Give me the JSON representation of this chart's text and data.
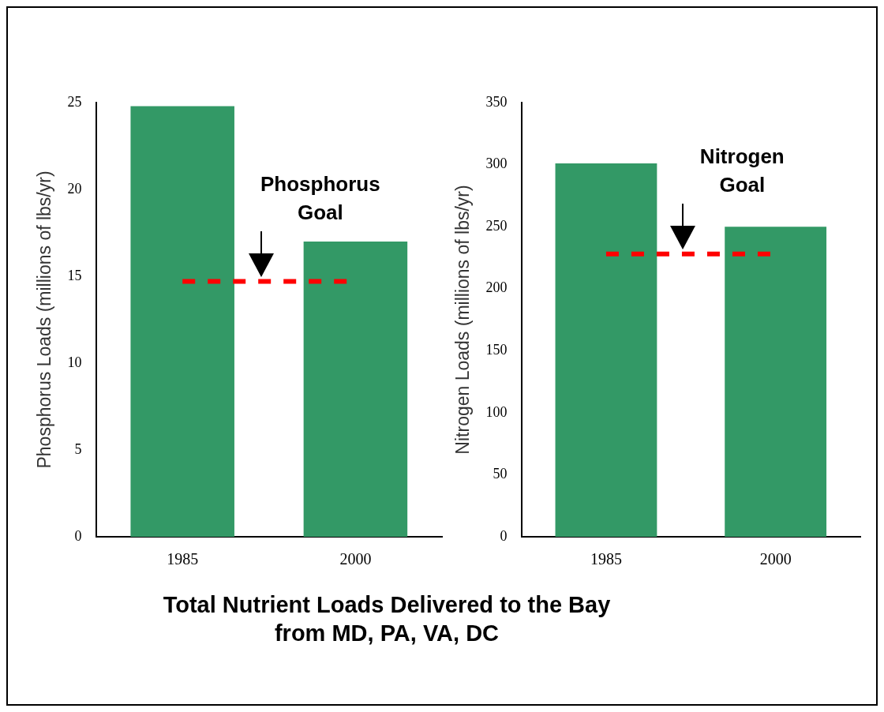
{
  "chart_data": [
    {
      "type": "bar",
      "ylabel": "Phosphorus Loads (millions of lbs/yr)",
      "categories": [
        "1985",
        "2000"
      ],
      "values": [
        24.8,
        17.0
      ],
      "color": "#339966",
      "ylim": [
        0,
        25
      ],
      "yticks": [
        0,
        5,
        10,
        15,
        20,
        25
      ],
      "grid": false,
      "legend": false,
      "ref_lines": [
        {
          "axis": "y",
          "value": 14.7,
          "label": "Phosphorus Goal",
          "color": "#ff0000",
          "line_style": "dashed"
        }
      ],
      "annotations": [
        "Total Nutrient Loads Delivered to the Bay from MD, PA, VA, DC"
      ]
    },
    {
      "type": "bar",
      "ylabel": "Nitrogen Loads (millions of lbs/yr)",
      "categories": [
        "1985",
        "2000"
      ],
      "values": [
        301,
        250
      ],
      "color": "#339966",
      "ylim": [
        0,
        350
      ],
      "yticks": [
        0,
        50,
        100,
        150,
        200,
        250,
        300,
        350
      ],
      "grid": false,
      "legend": false,
      "ref_lines": [
        {
          "axis": "y",
          "value": 228,
          "label": "Nitrogen Goal",
          "color": "#ff0000",
          "line_style": "dashed"
        }
      ]
    }
  ]
}
